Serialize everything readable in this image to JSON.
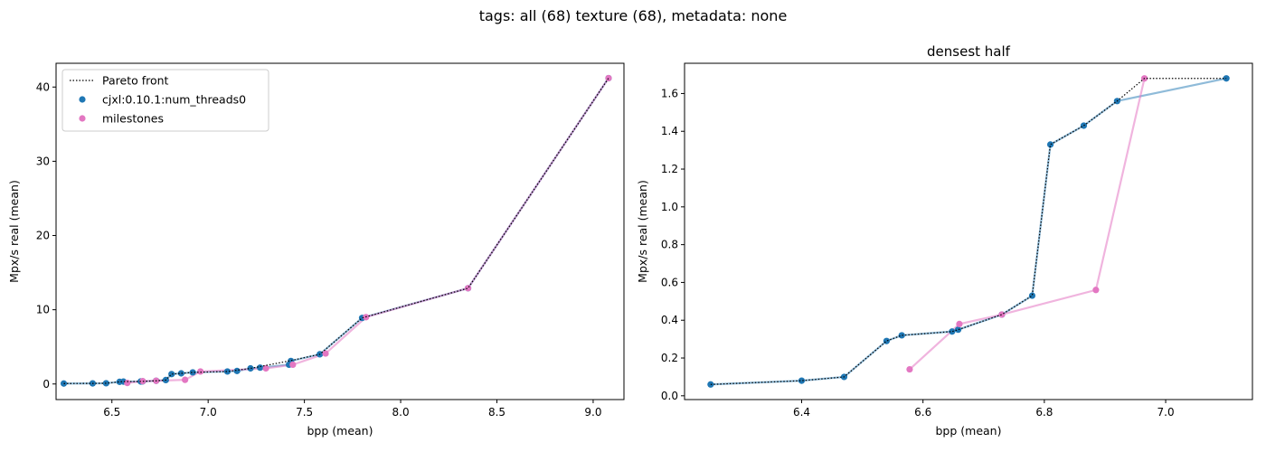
{
  "figure": {
    "suptitle": "tags: all (68) texture (68), metadata: none"
  },
  "colors": {
    "series_main": "#1f77b4",
    "series_milestones": "#e377c2",
    "pareto": "#000000"
  },
  "chart_data": [
    {
      "type": "scatter",
      "title": "",
      "xlabel": "bpp (mean)",
      "ylabel": "Mpx/s real (mean)",
      "xlim": [
        6.21,
        9.16
      ],
      "ylim": [
        -2.1,
        43.2
      ],
      "xticks": [
        6.5,
        7.0,
        7.5,
        8.0,
        8.5,
        9.0
      ],
      "xtick_labels": [
        "6.5",
        "7.0",
        "7.5",
        "8.0",
        "8.5",
        "9.0"
      ],
      "yticks": [
        0,
        10,
        20,
        30,
        40
      ],
      "ytick_labels": [
        "0",
        "10",
        "20",
        "30",
        "40"
      ],
      "grid": false,
      "legend": {
        "placement": "upper-left",
        "entries": [
          "Pareto front",
          "cjxl:0.10.1:num_threads0",
          "milestones"
        ]
      },
      "series": [
        {
          "name": "cjxl:0.10.1:num_threads0",
          "x": [
            6.25,
            6.4,
            6.47,
            6.54,
            6.56,
            6.65,
            6.66,
            6.73,
            6.78,
            6.81,
            6.86,
            6.92,
            7.1,
            7.15,
            7.22,
            7.27,
            7.42,
            7.43,
            7.58,
            7.8,
            8.35,
            9.08
          ],
          "y": [
            0.06,
            0.08,
            0.1,
            0.29,
            0.32,
            0.34,
            0.35,
            0.43,
            0.53,
            1.33,
            1.43,
            1.56,
            1.68,
            1.75,
            2.1,
            2.2,
            2.6,
            3.1,
            4.0,
            8.9,
            12.9,
            41.2
          ]
        },
        {
          "name": "milestones",
          "x": [
            6.58,
            6.66,
            6.73,
            6.88,
            6.96,
            7.3,
            7.44,
            7.61,
            7.82,
            8.35,
            9.08
          ],
          "y": [
            0.14,
            0.38,
            0.43,
            0.56,
            1.68,
            2.1,
            2.6,
            4.1,
            9.0,
            12.9,
            41.2
          ]
        },
        {
          "name": "Pareto front",
          "x": [
            6.25,
            6.4,
            6.47,
            6.54,
            6.56,
            6.65,
            6.66,
            6.73,
            6.78,
            6.81,
            6.86,
            6.92,
            7.1,
            7.22,
            7.42,
            7.58,
            7.8,
            8.35,
            9.08
          ],
          "y": [
            0.06,
            0.08,
            0.1,
            0.29,
            0.32,
            0.34,
            0.35,
            0.43,
            0.53,
            1.33,
            1.43,
            1.56,
            1.68,
            2.1,
            3.1,
            4.0,
            8.9,
            12.9,
            41.2
          ]
        }
      ]
    },
    {
      "type": "scatter",
      "title": "densest half",
      "xlabel": "bpp (mean)",
      "ylabel": "Mpx/s real (mean)",
      "xlim": [
        6.207,
        7.143
      ],
      "ylim": [
        -0.02,
        1.76
      ],
      "xticks": [
        6.4,
        6.6,
        6.8,
        7.0
      ],
      "xtick_labels": [
        "6.4",
        "6.6",
        "6.8",
        "7.0"
      ],
      "yticks": [
        0.0,
        0.2,
        0.4,
        0.6,
        0.8,
        1.0,
        1.2,
        1.4,
        1.6
      ],
      "ytick_labels": [
        "0.0",
        "0.2",
        "0.4",
        "0.6",
        "0.8",
        "1.0",
        "1.2",
        "1.4",
        "1.6"
      ],
      "grid": false,
      "legend": null,
      "series": [
        {
          "name": "cjxl:0.10.1:num_threads0",
          "x": [
            6.25,
            6.4,
            6.47,
            6.54,
            6.565,
            6.648,
            6.658,
            6.73,
            6.78,
            6.81,
            6.865,
            6.92,
            7.1
          ],
          "y": [
            0.06,
            0.08,
            0.1,
            0.29,
            0.32,
            0.34,
            0.35,
            0.43,
            0.53,
            1.33,
            1.43,
            1.56,
            1.68
          ]
        },
        {
          "name": "milestones",
          "x": [
            6.578,
            6.66,
            6.73,
            6.885,
            6.965
          ],
          "y": [
            0.14,
            0.38,
            0.43,
            0.56,
            1.68
          ]
        },
        {
          "name": "Pareto front",
          "x": [
            6.25,
            6.4,
            6.47,
            6.54,
            6.565,
            6.648,
            6.658,
            6.73,
            6.78,
            6.81,
            6.865,
            6.92,
            6.965,
            7.1
          ],
          "y": [
            0.06,
            0.08,
            0.1,
            0.29,
            0.32,
            0.34,
            0.35,
            0.43,
            0.53,
            1.33,
            1.43,
            1.56,
            1.68,
            1.68
          ]
        }
      ]
    }
  ]
}
